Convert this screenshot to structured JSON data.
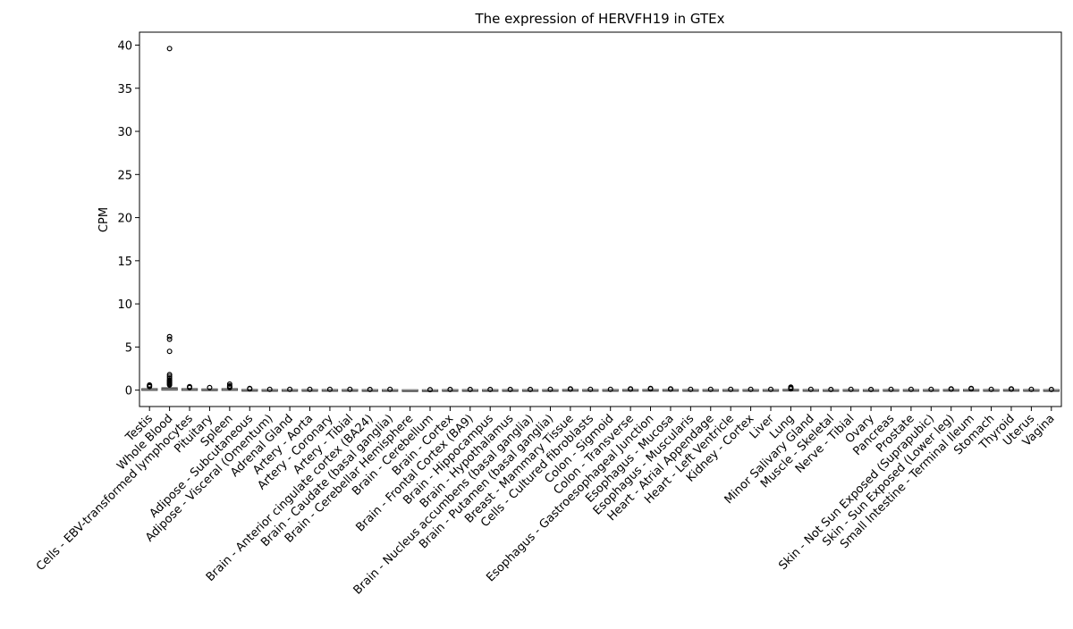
{
  "chart_data": {
    "type": "box",
    "title": "The expression of HERVFH19 in GTEx",
    "xlabel": "",
    "ylabel": "CPM",
    "ylim": [
      -1.9,
      41.5
    ],
    "yticks": [
      0,
      5,
      10,
      15,
      20,
      25,
      30,
      35,
      40
    ],
    "grid": false,
    "legend": "none",
    "box_color": "#4a4a4a",
    "categories": [
      "Testis",
      "Whole Blood",
      "Cells - EBV-transformed lymphocytes",
      "Pituitary",
      "Spleen",
      "Adipose - Subcutaneous",
      "Adipose - Visceral (Omentum)",
      "Adrenal Gland",
      "Artery - Aorta",
      "Artery - Coronary",
      "Artery - Tibial",
      "Brain - Anterior cingulate cortex (BA24)",
      "Brain - Caudate (basal ganglia)",
      "Brain - Cerebellar Hemisphere",
      "Brain - Cerebellum",
      "Brain - Cortex",
      "Brain - Frontal Cortex (BA9)",
      "Brain - Hippocampus",
      "Brain - Hypothalamus",
      "Brain - Nucleus accumbens (basal ganglia)",
      "Brain - Putamen (basal ganglia)",
      "Breast - Mammary Tissue",
      "Cells - Cultured fibroblasts",
      "Colon - Sigmoid",
      "Colon - Transverse",
      "Esophagus - Gastroesophageal Junction",
      "Esophagus - Mucosa",
      "Esophagus - Muscularis",
      "Heart - Atrial Appendage",
      "Heart - Left Ventricle",
      "Kidney - Cortex",
      "Liver",
      "Lung",
      "Minor Salivary Gland",
      "Muscle - Skeletal",
      "Nerve - Tibial",
      "Ovary",
      "Pancreas",
      "Prostate",
      "Skin - Not Sun Exposed (Suprapubic)",
      "Skin - Sun Exposed (Lower leg)",
      "Small Intestine - Terminal Ileum",
      "Stomach",
      "Thyroid",
      "Uterus",
      "Vagina"
    ],
    "boxes": [
      {
        "q1": 0.0,
        "median": 0.08,
        "q3": 0.15,
        "whisker_low": 0.0,
        "whisker_high": 0.3,
        "outliers": [
          0.4,
          0.5,
          0.6
        ]
      },
      {
        "q1": 0.02,
        "median": 0.1,
        "q3": 0.25,
        "whisker_low": 0.0,
        "whisker_high": 0.5,
        "outliers": [
          0.6,
          0.7,
          0.8,
          0.9,
          1.0,
          1.1,
          1.2,
          1.4,
          1.6,
          1.8,
          4.5,
          5.9,
          6.2,
          39.6
        ]
      },
      {
        "q1": 0.02,
        "median": 0.08,
        "q3": 0.15,
        "whisker_low": 0.0,
        "whisker_high": 0.25,
        "outliers": [
          0.3,
          0.4
        ]
      },
      {
        "q1": 0.02,
        "median": 0.07,
        "q3": 0.12,
        "whisker_low": 0.0,
        "whisker_high": 0.2,
        "outliers": [
          0.3
        ]
      },
      {
        "q1": 0.02,
        "median": 0.08,
        "q3": 0.15,
        "whisker_low": 0.0,
        "whisker_high": 0.25,
        "outliers": [
          0.3,
          0.4,
          0.5,
          0.7
        ]
      },
      {
        "q1": 0.0,
        "median": 0.03,
        "q3": 0.06,
        "whisker_low": 0.0,
        "whisker_high": 0.1,
        "outliers": [
          0.15,
          0.2
        ]
      },
      {
        "q1": 0.0,
        "median": 0.02,
        "q3": 0.05,
        "whisker_low": 0.0,
        "whisker_high": 0.08,
        "outliers": [
          0.1
        ]
      },
      {
        "q1": 0.0,
        "median": 0.02,
        "q3": 0.05,
        "whisker_low": 0.0,
        "whisker_high": 0.08,
        "outliers": [
          0.1
        ]
      },
      {
        "q1": 0.0,
        "median": 0.02,
        "q3": 0.05,
        "whisker_low": 0.0,
        "whisker_high": 0.08,
        "outliers": [
          0.1
        ]
      },
      {
        "q1": 0.0,
        "median": 0.02,
        "q3": 0.05,
        "whisker_low": 0.0,
        "whisker_high": 0.08,
        "outliers": [
          0.1
        ]
      },
      {
        "q1": 0.0,
        "median": 0.02,
        "q3": 0.05,
        "whisker_low": 0.0,
        "whisker_high": 0.08,
        "outliers": [
          0.1
        ]
      },
      {
        "q1": 0.0,
        "median": 0.02,
        "q3": 0.04,
        "whisker_low": 0.0,
        "whisker_high": 0.06,
        "outliers": [
          0.08
        ]
      },
      {
        "q1": 0.0,
        "median": 0.02,
        "q3": 0.04,
        "whisker_low": 0.0,
        "whisker_high": 0.06,
        "outliers": [
          0.1
        ]
      },
      {
        "q1": 0.0,
        "median": 0.0,
        "q3": 0.02,
        "whisker_low": 0.0,
        "whisker_high": 0.03,
        "outliers": []
      },
      {
        "q1": 0.0,
        "median": 0.0,
        "q3": 0.02,
        "whisker_low": 0.0,
        "whisker_high": 0.03,
        "outliers": [
          0.05
        ]
      },
      {
        "q1": 0.0,
        "median": 0.02,
        "q3": 0.04,
        "whisker_low": 0.0,
        "whisker_high": 0.06,
        "outliers": [
          0.08
        ]
      },
      {
        "q1": 0.0,
        "median": 0.02,
        "q3": 0.04,
        "whisker_low": 0.0,
        "whisker_high": 0.06,
        "outliers": [
          0.08
        ]
      },
      {
        "q1": 0.0,
        "median": 0.02,
        "q3": 0.04,
        "whisker_low": 0.0,
        "whisker_high": 0.06,
        "outliers": [
          0.08
        ]
      },
      {
        "q1": 0.0,
        "median": 0.02,
        "q3": 0.04,
        "whisker_low": 0.0,
        "whisker_high": 0.06,
        "outliers": [
          0.08
        ]
      },
      {
        "q1": 0.0,
        "median": 0.02,
        "q3": 0.04,
        "whisker_low": 0.0,
        "whisker_high": 0.06,
        "outliers": [
          0.08
        ]
      },
      {
        "q1": 0.0,
        "median": 0.02,
        "q3": 0.04,
        "whisker_low": 0.0,
        "whisker_high": 0.06,
        "outliers": [
          0.1
        ]
      },
      {
        "q1": 0.0,
        "median": 0.03,
        "q3": 0.06,
        "whisker_low": 0.0,
        "whisker_high": 0.1,
        "outliers": [
          0.12,
          0.15
        ]
      },
      {
        "q1": 0.0,
        "median": 0.02,
        "q3": 0.05,
        "whisker_low": 0.0,
        "whisker_high": 0.08,
        "outliers": [
          0.1
        ]
      },
      {
        "q1": 0.0,
        "median": 0.02,
        "q3": 0.05,
        "whisker_low": 0.0,
        "whisker_high": 0.08,
        "outliers": [
          0.1
        ]
      },
      {
        "q1": 0.0,
        "median": 0.03,
        "q3": 0.06,
        "whisker_low": 0.0,
        "whisker_high": 0.1,
        "outliers": [
          0.12,
          0.15
        ]
      },
      {
        "q1": 0.0,
        "median": 0.03,
        "q3": 0.06,
        "whisker_low": 0.0,
        "whisker_high": 0.1,
        "outliers": [
          0.15,
          0.2
        ]
      },
      {
        "q1": 0.0,
        "median": 0.03,
        "q3": 0.06,
        "whisker_low": 0.0,
        "whisker_high": 0.1,
        "outliers": [
          0.12,
          0.15
        ]
      },
      {
        "q1": 0.0,
        "median": 0.02,
        "q3": 0.05,
        "whisker_low": 0.0,
        "whisker_high": 0.08,
        "outliers": [
          0.1
        ]
      },
      {
        "q1": 0.0,
        "median": 0.02,
        "q3": 0.05,
        "whisker_low": 0.0,
        "whisker_high": 0.08,
        "outliers": [
          0.1
        ]
      },
      {
        "q1": 0.0,
        "median": 0.02,
        "q3": 0.05,
        "whisker_low": 0.0,
        "whisker_high": 0.08,
        "outliers": [
          0.1
        ]
      },
      {
        "q1": 0.0,
        "median": 0.02,
        "q3": 0.05,
        "whisker_low": 0.0,
        "whisker_high": 0.08,
        "outliers": [
          0.1
        ]
      },
      {
        "q1": 0.0,
        "median": 0.02,
        "q3": 0.05,
        "whisker_low": 0.0,
        "whisker_high": 0.08,
        "outliers": [
          0.1
        ]
      },
      {
        "q1": 0.0,
        "median": 0.03,
        "q3": 0.08,
        "whisker_low": 0.0,
        "whisker_high": 0.12,
        "outliers": [
          0.15,
          0.2,
          0.25,
          0.35
        ]
      },
      {
        "q1": 0.0,
        "median": 0.02,
        "q3": 0.05,
        "whisker_low": 0.0,
        "whisker_high": 0.08,
        "outliers": [
          0.1
        ]
      },
      {
        "q1": 0.0,
        "median": 0.02,
        "q3": 0.04,
        "whisker_low": 0.0,
        "whisker_high": 0.06,
        "outliers": [
          0.08
        ]
      },
      {
        "q1": 0.0,
        "median": 0.02,
        "q3": 0.05,
        "whisker_low": 0.0,
        "whisker_high": 0.08,
        "outliers": [
          0.1
        ]
      },
      {
        "q1": 0.0,
        "median": 0.02,
        "q3": 0.04,
        "whisker_low": 0.0,
        "whisker_high": 0.06,
        "outliers": [
          0.08
        ]
      },
      {
        "q1": 0.0,
        "median": 0.02,
        "q3": 0.05,
        "whisker_low": 0.0,
        "whisker_high": 0.08,
        "outliers": [
          0.1
        ]
      },
      {
        "q1": 0.0,
        "median": 0.02,
        "q3": 0.05,
        "whisker_low": 0.0,
        "whisker_high": 0.08,
        "outliers": [
          0.1
        ]
      },
      {
        "q1": 0.0,
        "median": 0.02,
        "q3": 0.05,
        "whisker_low": 0.0,
        "whisker_high": 0.08,
        "outliers": [
          0.1
        ]
      },
      {
        "q1": 0.0,
        "median": 0.03,
        "q3": 0.06,
        "whisker_low": 0.0,
        "whisker_high": 0.1,
        "outliers": [
          0.12,
          0.15
        ]
      },
      {
        "q1": 0.0,
        "median": 0.03,
        "q3": 0.06,
        "whisker_low": 0.0,
        "whisker_high": 0.1,
        "outliers": [
          0.15,
          0.2
        ]
      },
      {
        "q1": 0.0,
        "median": 0.02,
        "q3": 0.05,
        "whisker_low": 0.0,
        "whisker_high": 0.08,
        "outliers": [
          0.1
        ]
      },
      {
        "q1": 0.0,
        "median": 0.03,
        "q3": 0.06,
        "whisker_low": 0.0,
        "whisker_high": 0.1,
        "outliers": [
          0.12,
          0.15
        ]
      },
      {
        "q1": 0.0,
        "median": 0.02,
        "q3": 0.05,
        "whisker_low": 0.0,
        "whisker_high": 0.08,
        "outliers": [
          0.1
        ]
      },
      {
        "q1": 0.0,
        "median": 0.02,
        "q3": 0.04,
        "whisker_low": 0.0,
        "whisker_high": 0.06,
        "outliers": [
          0.08
        ]
      }
    ]
  }
}
